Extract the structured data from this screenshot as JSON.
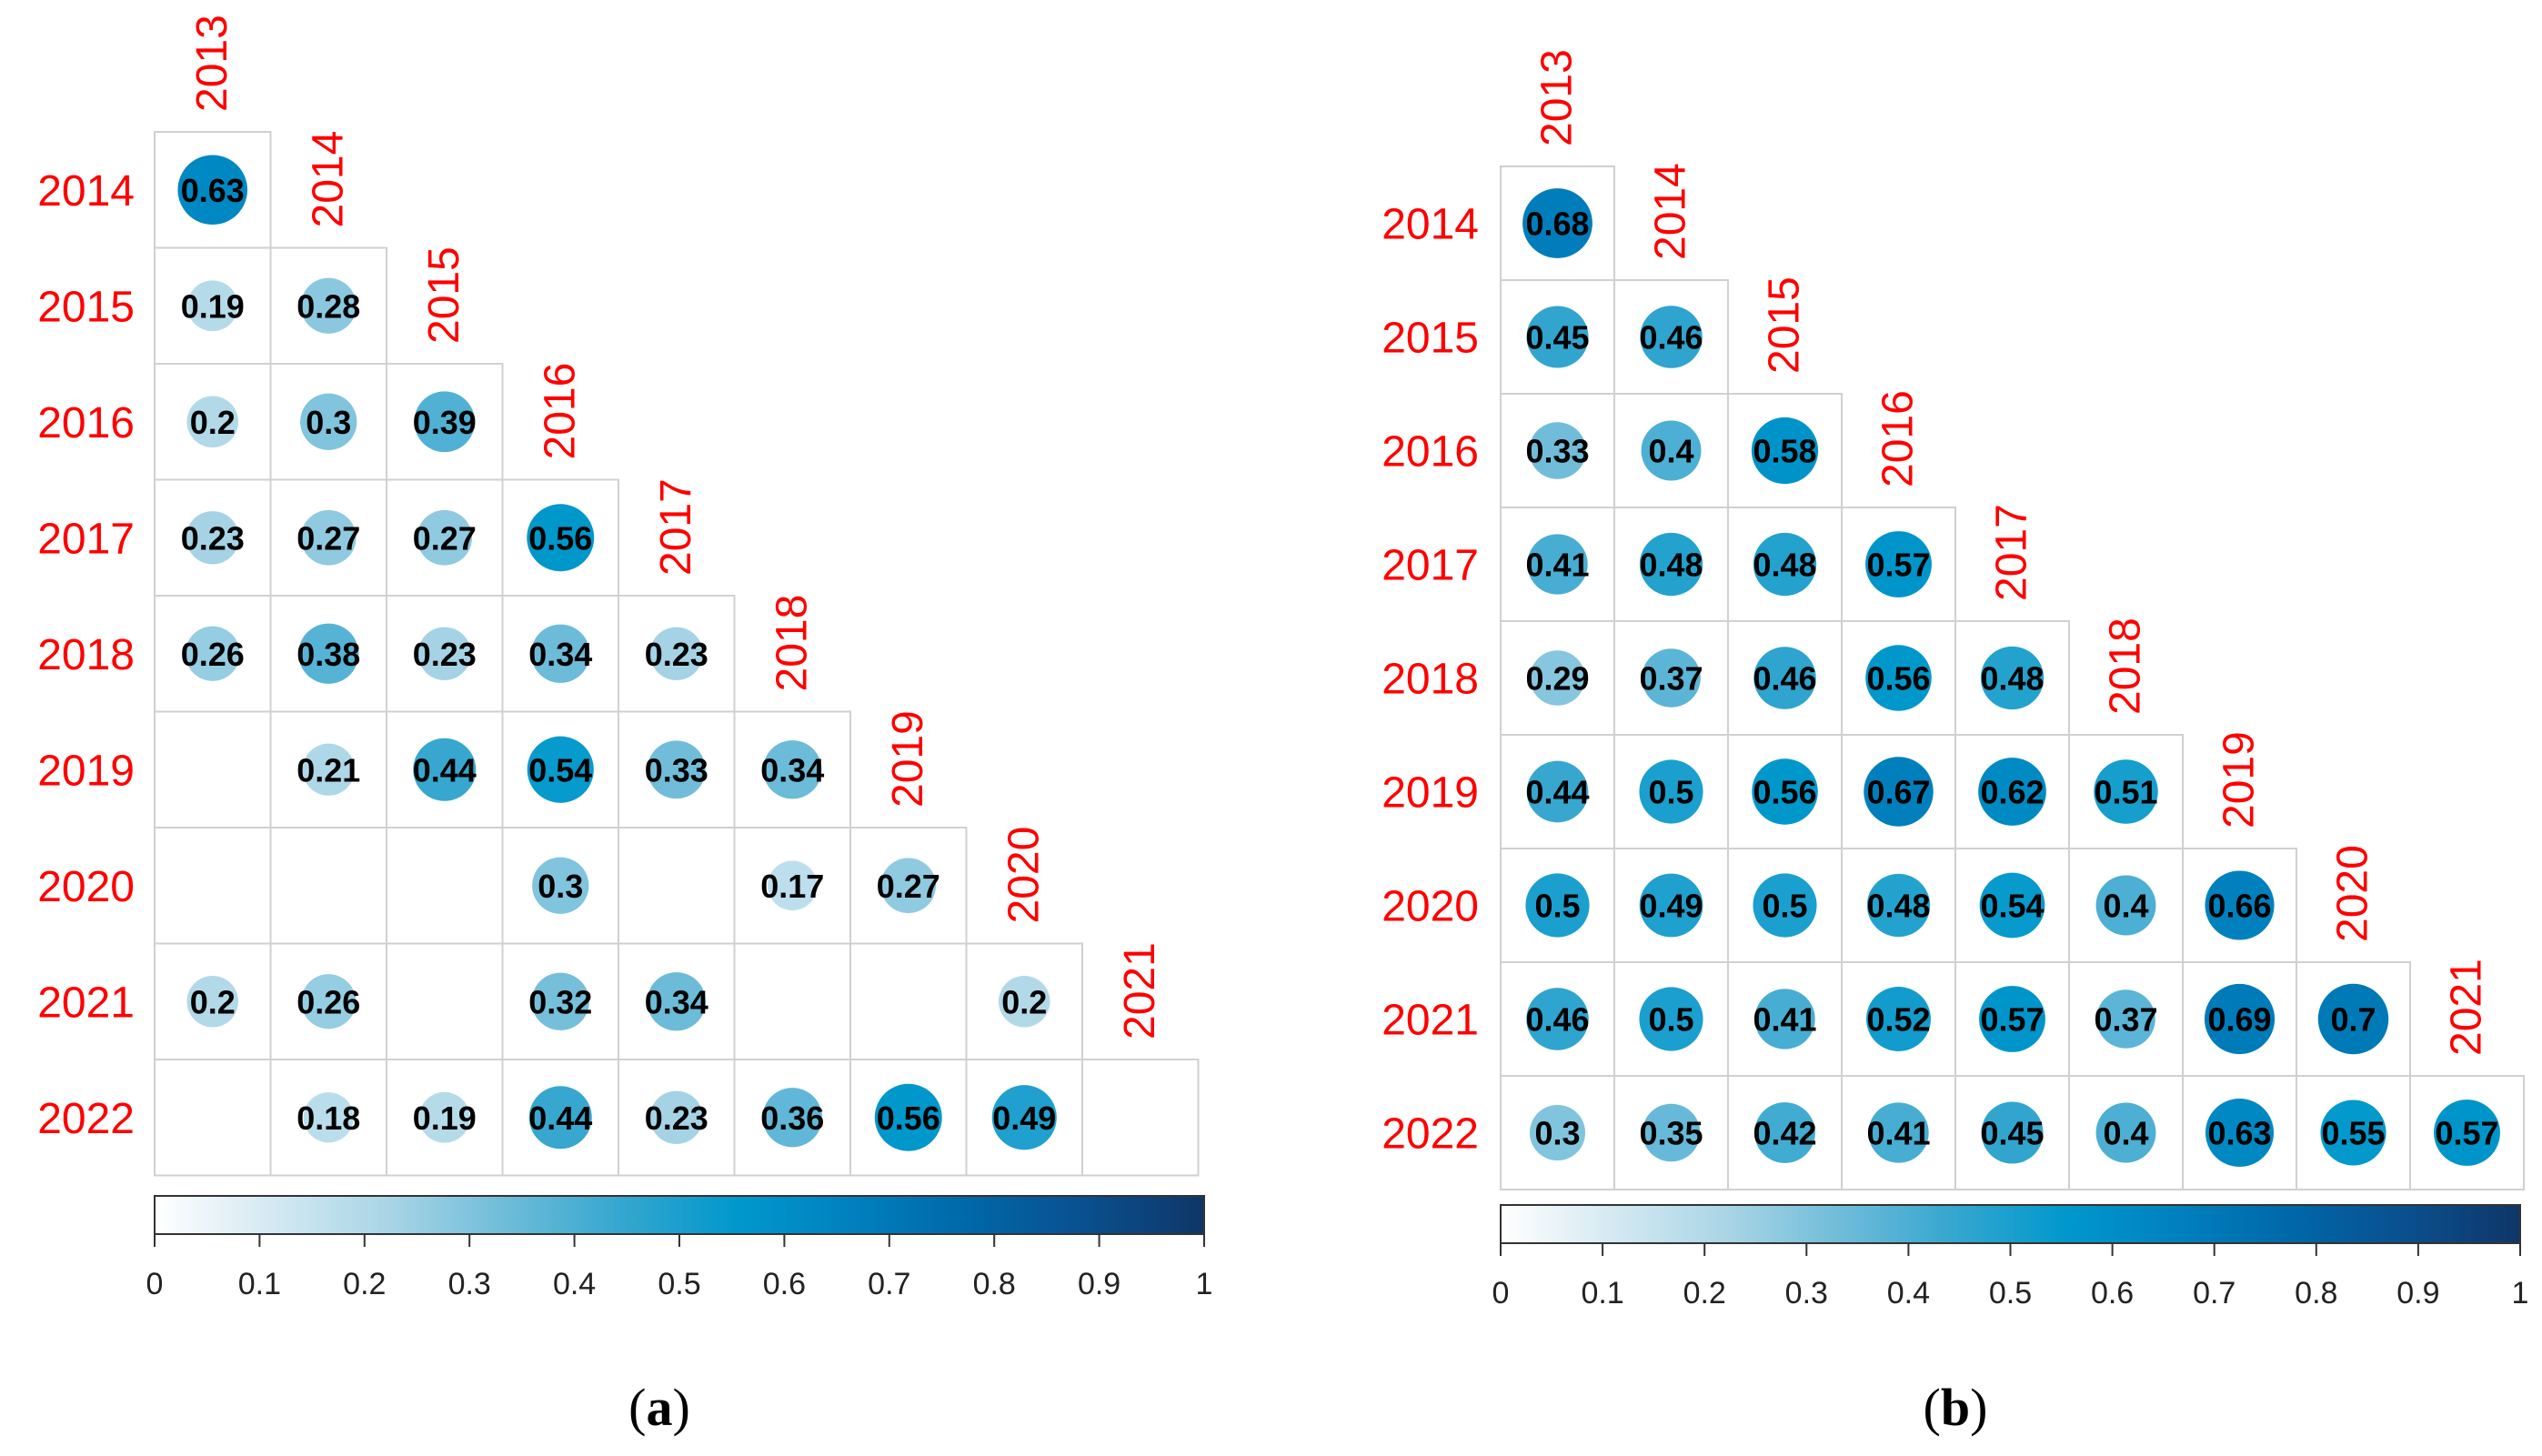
{
  "chart_data": [
    {
      "type": "heatmap",
      "subtype": "correlation-lower-triangle",
      "panel_label_open": "(",
      "panel_label_letter": "a",
      "panel_label_close": ")",
      "columns": [
        "2013",
        "2014",
        "2015",
        "2016",
        "2017",
        "2018",
        "2019",
        "2020",
        "2021"
      ],
      "rows": [
        "2014",
        "2015",
        "2016",
        "2017",
        "2018",
        "2019",
        "2020",
        "2021",
        "2022"
      ],
      "values": [
        [
          0.63
        ],
        [
          0.19,
          0.28
        ],
        [
          0.2,
          0.3,
          0.39
        ],
        [
          0.23,
          0.27,
          0.27,
          0.56
        ],
        [
          0.26,
          0.38,
          0.23,
          0.34,
          0.23
        ],
        [
          null,
          0.21,
          0.44,
          0.54,
          0.33,
          0.34
        ],
        [
          null,
          null,
          null,
          0.3,
          null,
          0.17,
          0.27
        ],
        [
          0.2,
          0.26,
          null,
          0.32,
          0.34,
          null,
          null,
          0.2
        ],
        [
          null,
          0.18,
          0.19,
          0.44,
          0.23,
          0.36,
          0.56,
          0.49,
          null
        ]
      ],
      "colorbar": {
        "range": [
          0,
          1
        ],
        "ticks": [
          "0",
          "0.1",
          "0.2",
          "0.3",
          "0.4",
          "0.5",
          "0.6",
          "0.7",
          "0.8",
          "0.9",
          "1"
        ]
      }
    },
    {
      "type": "heatmap",
      "subtype": "correlation-lower-triangle",
      "panel_label_open": "(",
      "panel_label_letter": "b",
      "panel_label_close": ")",
      "columns": [
        "2013",
        "2014",
        "2015",
        "2016",
        "2017",
        "2018",
        "2019",
        "2020",
        "2021"
      ],
      "rows": [
        "2014",
        "2015",
        "2016",
        "2017",
        "2018",
        "2019",
        "2020",
        "2021",
        "2022"
      ],
      "values": [
        [
          0.68
        ],
        [
          0.45,
          0.46
        ],
        [
          0.33,
          0.4,
          0.58
        ],
        [
          0.41,
          0.48,
          0.48,
          0.57
        ],
        [
          0.29,
          0.37,
          0.46,
          0.56,
          0.48
        ],
        [
          0.44,
          0.5,
          0.56,
          0.67,
          0.62,
          0.51
        ],
        [
          0.5,
          0.49,
          0.5,
          0.48,
          0.54,
          0.4,
          0.66
        ],
        [
          0.46,
          0.5,
          0.41,
          0.52,
          0.57,
          0.37,
          0.69,
          0.7
        ],
        [
          0.3,
          0.35,
          0.42,
          0.41,
          0.45,
          0.4,
          0.63,
          0.55,
          0.57
        ]
      ],
      "colorbar": {
        "range": [
          0,
          1
        ],
        "ticks": [
          "0",
          "0.1",
          "0.2",
          "0.3",
          "0.4",
          "0.5",
          "0.6",
          "0.7",
          "0.8",
          "0.9",
          "1"
        ]
      }
    }
  ],
  "colors": {
    "label_red": "#ff0000",
    "grid_line": "#d0d0d0",
    "scale": [
      "#ffffff",
      "#d4e9f2",
      "#a9d5e6",
      "#6fbcd9",
      "#35a6cf",
      "#0098cc",
      "#0080bd",
      "#0067a8",
      "#0a4f8e",
      "#0f3668"
    ]
  }
}
